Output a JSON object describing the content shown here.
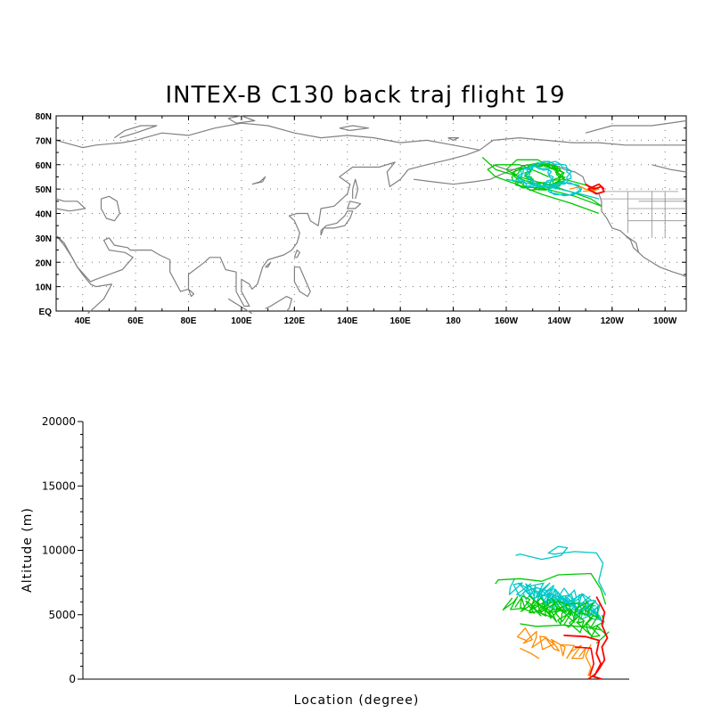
{
  "title": "INTEX-B C130 back traj flight 19",
  "chart_data": [
    {
      "type": "map",
      "lat_ticks": [
        "EQ",
        "10N",
        "20N",
        "30N",
        "40N",
        "50N",
        "60N",
        "70N",
        "80N"
      ],
      "lon_ticks": [
        "40E",
        "60E",
        "80E",
        "100E",
        "120E",
        "140E",
        "160E",
        "180",
        "160W",
        "140W",
        "120W",
        "100W"
      ],
      "xlim": [
        30,
        268
      ],
      "ylim": [
        0,
        80
      ],
      "grid": true,
      "trajectory_colors": [
        "#ff0000",
        "#ff8c00",
        "#00c800",
        "#00c8c8"
      ]
    },
    {
      "type": "line",
      "xlabel": "Location (degree)",
      "ylabel": "Altitude (m)",
      "ylim": [
        0,
        20000
      ],
      "yticks": [
        "0",
        "5000",
        "10000",
        "15000",
        "20000"
      ],
      "series_colors": [
        "#ff0000",
        "#ff8c00",
        "#00c800",
        "#00c8c8"
      ]
    }
  ]
}
